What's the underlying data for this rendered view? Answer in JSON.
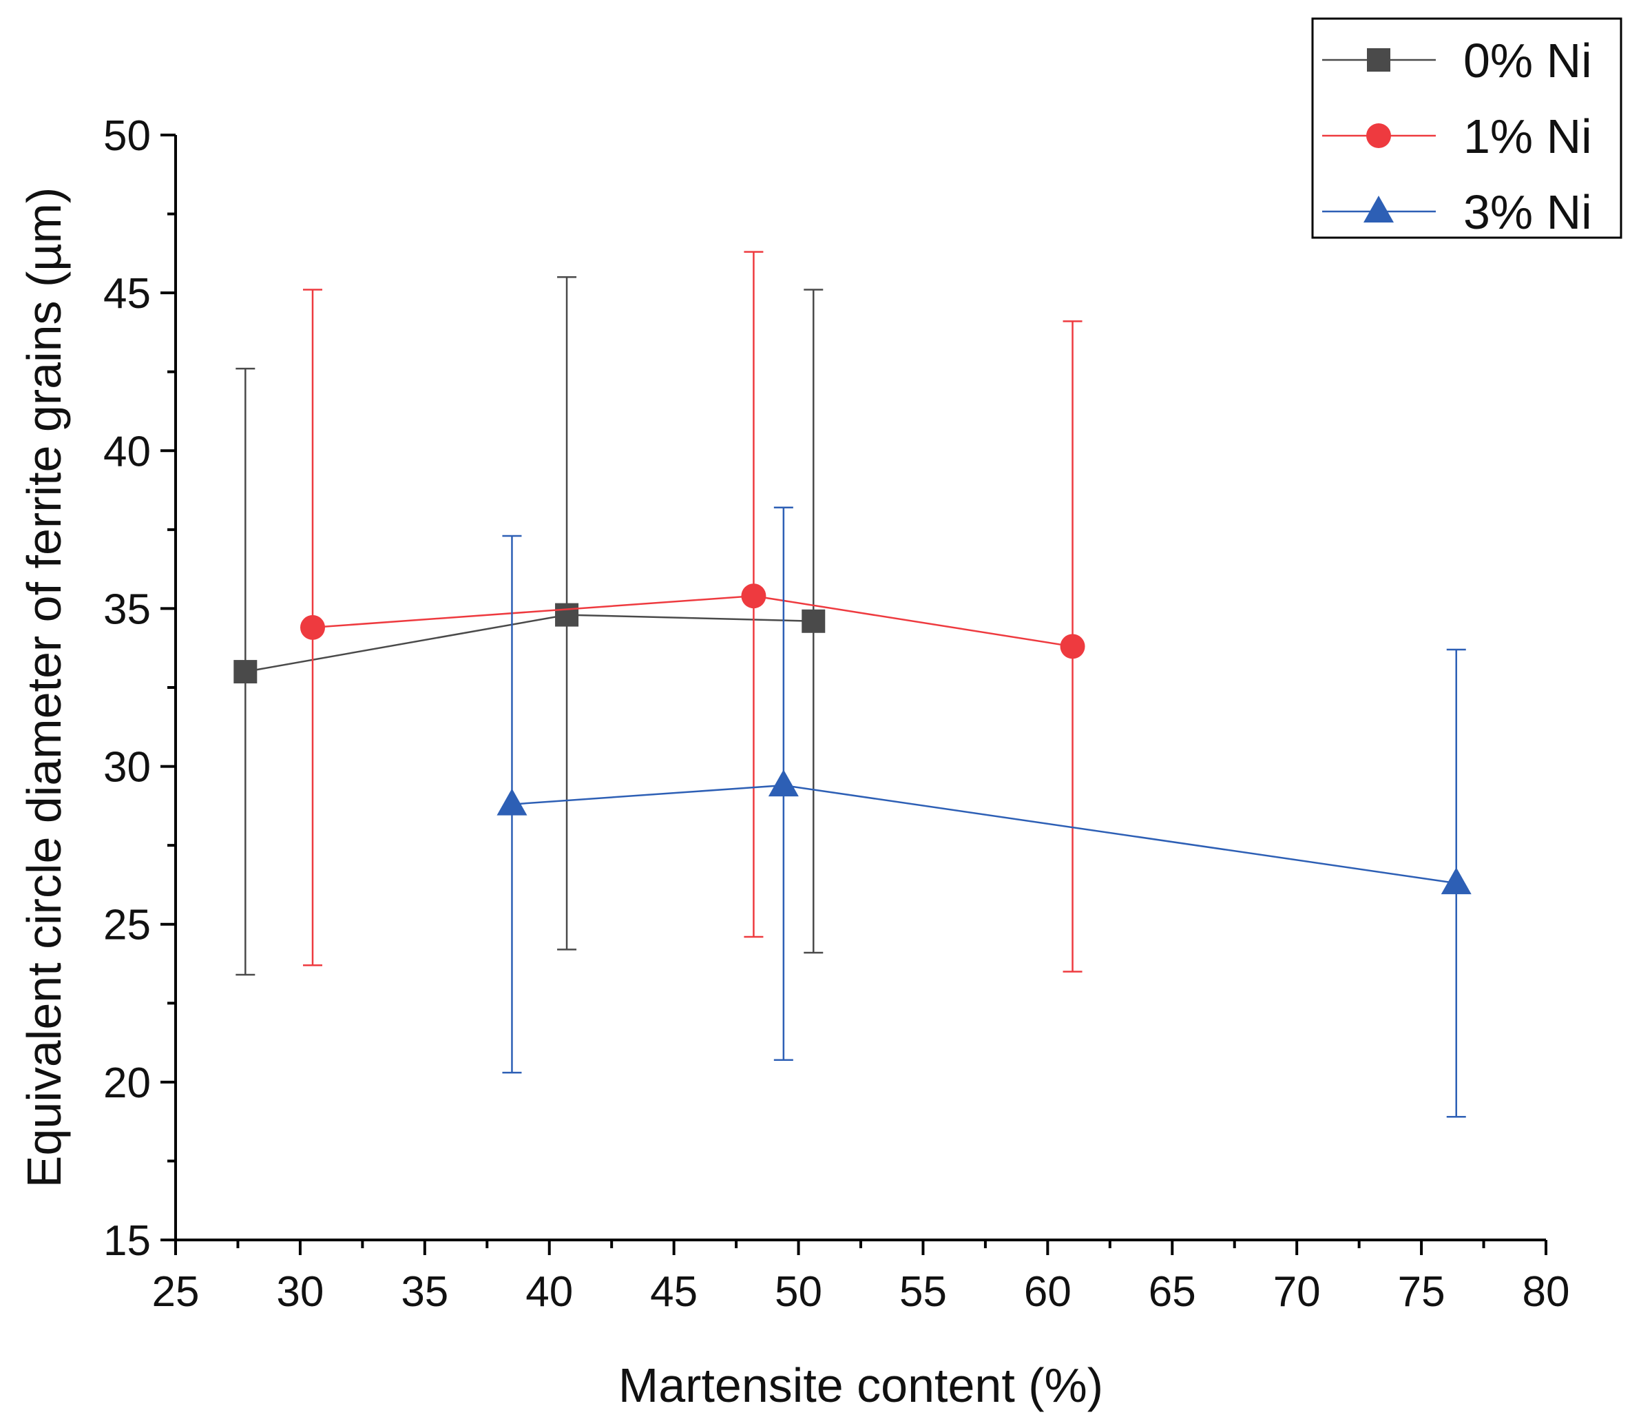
{
  "chart_data": {
    "type": "scatter",
    "xlabel": "Martensite content (%)",
    "ylabel": "Equivalent circle diameter of ferrite grains (µm)",
    "xlim": [
      25,
      80
    ],
    "ylim": [
      15,
      50
    ],
    "xticks": [
      25,
      30,
      35,
      40,
      45,
      50,
      55,
      60,
      65,
      70,
      75,
      80
    ],
    "yticks": [
      15,
      20,
      25,
      30,
      35,
      40,
      45,
      50
    ],
    "grid": false,
    "legend_position": "top-right",
    "series": [
      {
        "name": "0% Ni",
        "color": "#4a4a4a",
        "marker": "square",
        "points": [
          {
            "x": 27.8,
            "y": 33.0,
            "err_low": 23.4,
            "err_high": 42.6
          },
          {
            "x": 40.7,
            "y": 34.8,
            "err_low": 24.2,
            "err_high": 45.5
          },
          {
            "x": 50.6,
            "y": 34.6,
            "err_low": 24.1,
            "err_high": 45.1
          }
        ]
      },
      {
        "name": "1% Ni",
        "color": "#ee3a3f",
        "marker": "circle",
        "points": [
          {
            "x": 30.5,
            "y": 34.4,
            "err_low": 23.7,
            "err_high": 45.1
          },
          {
            "x": 48.2,
            "y": 35.4,
            "err_low": 24.6,
            "err_high": 46.3
          },
          {
            "x": 61.0,
            "y": 33.8,
            "err_low": 23.5,
            "err_high": 44.1
          }
        ]
      },
      {
        "name": "3% Ni",
        "color": "#2d5fb5",
        "marker": "triangle",
        "points": [
          {
            "x": 38.5,
            "y": 28.8,
            "err_low": 20.3,
            "err_high": 37.3
          },
          {
            "x": 49.4,
            "y": 29.4,
            "err_low": 20.7,
            "err_high": 38.2
          },
          {
            "x": 76.4,
            "y": 26.3,
            "err_low": 18.9,
            "err_high": 33.7
          }
        ]
      }
    ]
  }
}
